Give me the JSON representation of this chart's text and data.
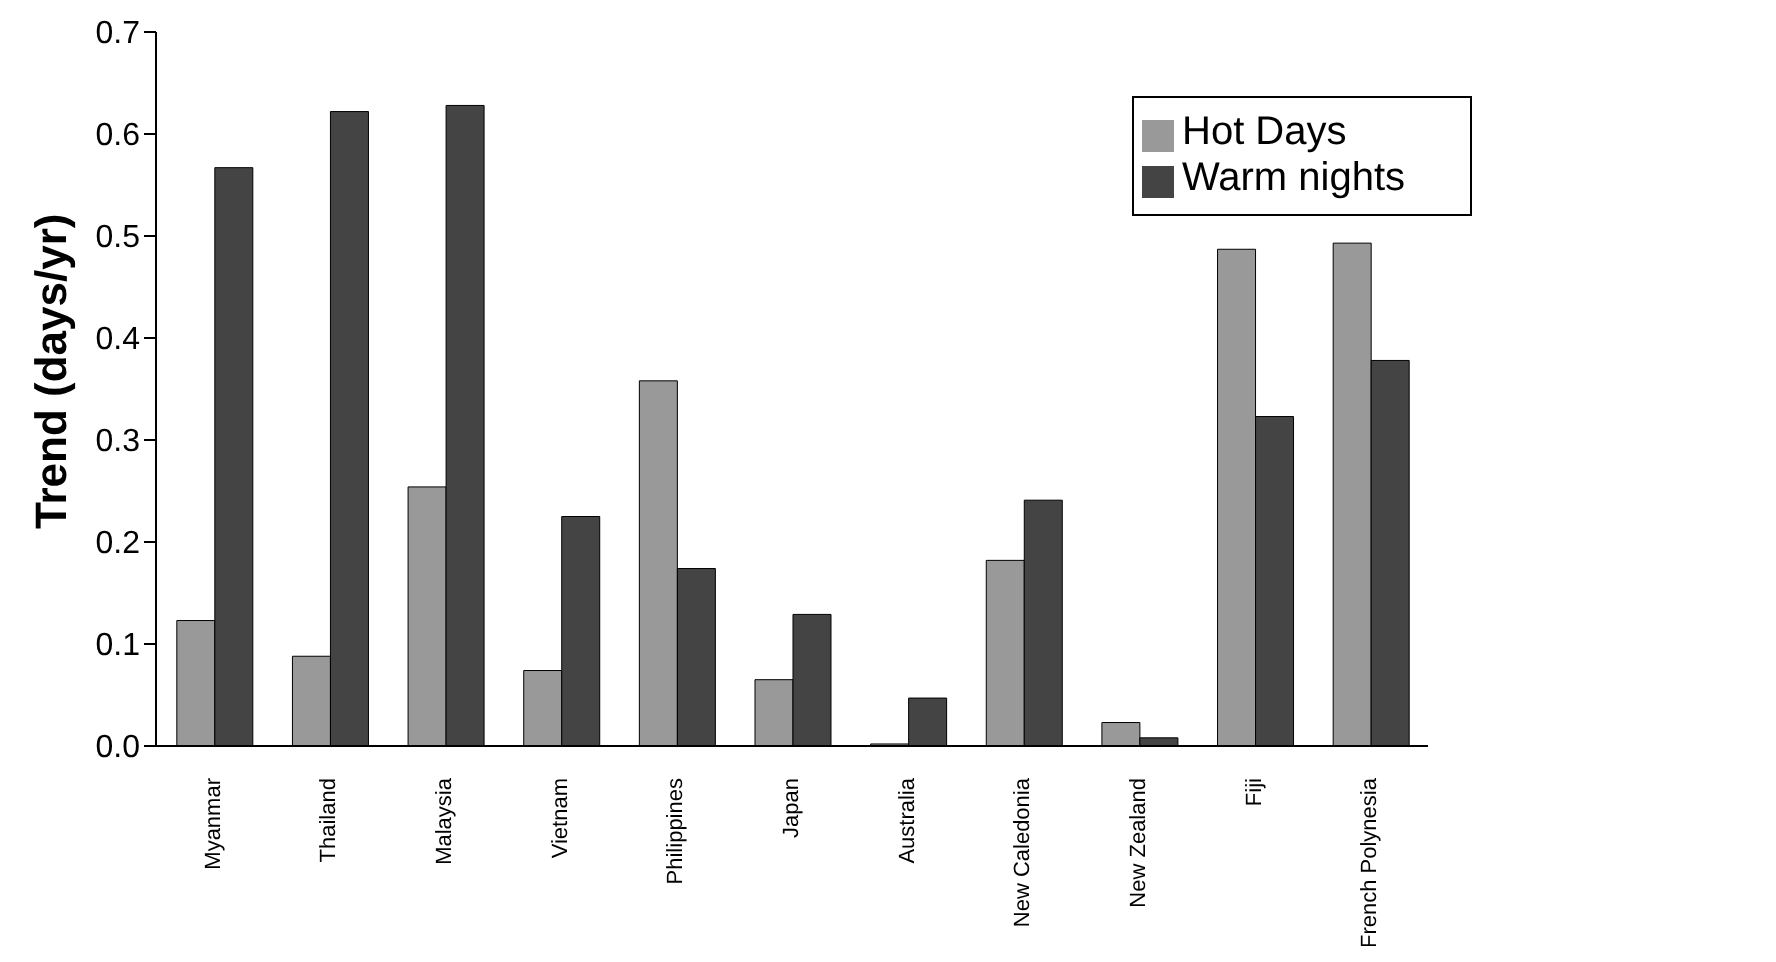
{
  "chart_data": {
    "type": "bar",
    "ylabel": "Trend (days/yr)",
    "categories": [
      "Myanmar",
      "Thailand",
      "Malaysia",
      "Vietnam",
      "Philippines",
      "Japan",
      "Australia",
      "New Caledonia",
      "New Zealand",
      "Fiji",
      "French Polynesia"
    ],
    "series": [
      {
        "name": "Hot Days",
        "color": "#999999",
        "values": [
          0.123,
          0.088,
          0.254,
          0.074,
          0.358,
          0.065,
          0.002,
          0.182,
          0.023,
          0.487,
          0.493
        ]
      },
      {
        "name": "Warm nights",
        "color": "#444444",
        "values": [
          0.567,
          0.622,
          0.628,
          0.225,
          0.174,
          0.129,
          0.047,
          0.241,
          0.008,
          0.323,
          0.378
        ]
      }
    ],
    "ylim": [
      0,
      0.7
    ],
    "yticks": [
      {
        "value": 0,
        "label": "0.0"
      },
      {
        "value": 0.1,
        "label": "0.1"
      },
      {
        "value": 0.2,
        "label": "0.2"
      },
      {
        "value": 0.3,
        "label": "0.3"
      },
      {
        "value": 0.4,
        "label": "0.4"
      },
      {
        "value": 0.5,
        "label": "0.5"
      },
      {
        "value": 0.6,
        "label": "0.6"
      },
      {
        "value": 0.7,
        "label": "0.7"
      }
    ],
    "legend": "top right",
    "grid": false
  }
}
